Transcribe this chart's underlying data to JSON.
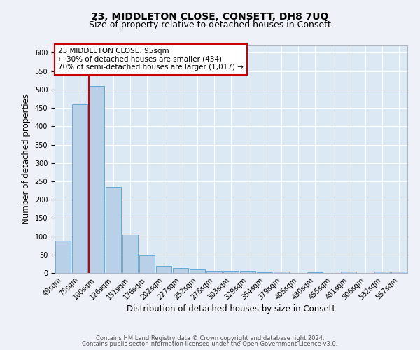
{
  "title": "23, MIDDLETON CLOSE, CONSETT, DH8 7UQ",
  "subtitle": "Size of property relative to detached houses in Consett",
  "xlabel": "Distribution of detached houses by size in Consett",
  "ylabel": "Number of detached properties",
  "categories": [
    "49sqm",
    "75sqm",
    "100sqm",
    "126sqm",
    "151sqm",
    "176sqm",
    "202sqm",
    "227sqm",
    "252sqm",
    "278sqm",
    "303sqm",
    "329sqm",
    "354sqm",
    "379sqm",
    "405sqm",
    "430sqm",
    "455sqm",
    "481sqm",
    "506sqm",
    "532sqm",
    "557sqm"
  ],
  "values": [
    88,
    460,
    510,
    235,
    105,
    47,
    20,
    14,
    9,
    6,
    5,
    5,
    2,
    4,
    0,
    2,
    0,
    3,
    0,
    4,
    3
  ],
  "bar_color": "#b8d0e8",
  "bar_edge_color": "#6aaad4",
  "vline_color": "#cc0000",
  "vline_index": 2,
  "annotation_line1": "23 MIDDLETON CLOSE: 95sqm",
  "annotation_line2": "← 30% of detached houses are smaller (434)",
  "annotation_line3": "70% of semi-detached houses are larger (1,017) →",
  "box_edge_color": "#cc0000",
  "footer_line1": "Contains HM Land Registry data © Crown copyright and database right 2024.",
  "footer_line2": "Contains public sector information licensed under the Open Government Licence v3.0.",
  "ylim_max": 620,
  "yticks": [
    0,
    50,
    100,
    150,
    200,
    250,
    300,
    350,
    400,
    450,
    500,
    550,
    600
  ],
  "background_color": "#eef2f8",
  "plot_bg_color": "#dce8f4",
  "grid_color": "#ffffff",
  "title_fontsize": 10,
  "subtitle_fontsize": 9,
  "axis_label_fontsize": 8.5,
  "tick_fontsize": 7,
  "annotation_fontsize": 7.5,
  "footer_fontsize": 6
}
